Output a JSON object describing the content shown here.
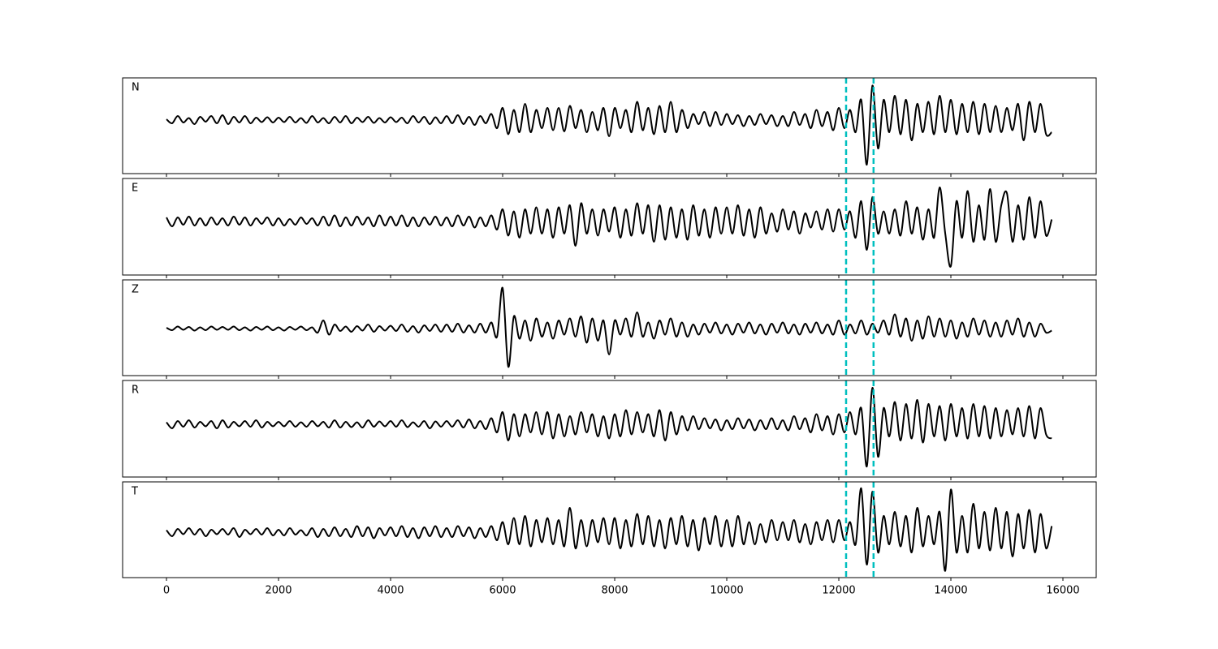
{
  "chart_data": {
    "type": "line",
    "color": "#000000",
    "vline_color": "#00bfbf",
    "vlines": [
      12130,
      12620
    ],
    "xlim": [
      -783,
      16594
    ],
    "xticks": [
      0,
      2000,
      4000,
      6000,
      8000,
      10000,
      12000,
      14000,
      16000
    ],
    "x": [
      0,
      100,
      200,
      300,
      400,
      500,
      600,
      700,
      800,
      900,
      1000,
      1100,
      1200,
      1300,
      1400,
      1500,
      1600,
      1700,
      1800,
      1900,
      2000,
      2100,
      2200,
      2300,
      2400,
      2500,
      2600,
      2700,
      2800,
      2900,
      3000,
      3100,
      3200,
      3300,
      3400,
      3500,
      3600,
      3700,
      3800,
      3900,
      4000,
      4100,
      4200,
      4300,
      4400,
      4500,
      4600,
      4700,
      4800,
      4900,
      5000,
      5100,
      5200,
      5300,
      5400,
      5500,
      5600,
      5700,
      5800,
      5900,
      6000,
      6100,
      6200,
      6300,
      6400,
      6500,
      6600,
      6700,
      6800,
      6900,
      7000,
      7100,
      7200,
      7300,
      7400,
      7500,
      7600,
      7700,
      7800,
      7900,
      8000,
      8100,
      8200,
      8300,
      8400,
      8500,
      8600,
      8700,
      8800,
      8900,
      9000,
      9100,
      9200,
      9300,
      9400,
      9500,
      9600,
      9700,
      9800,
      9900,
      10000,
      10100,
      10200,
      10300,
      10400,
      10500,
      10600,
      10700,
      10800,
      10900,
      11000,
      11100,
      11200,
      11300,
      11400,
      11500,
      11600,
      11700,
      11800,
      11900,
      12000,
      12100,
      12200,
      12300,
      12400,
      12500,
      12600,
      12700,
      12800,
      12900,
      13000,
      13100,
      13200,
      13300,
      13400,
      13500,
      13600,
      13700,
      13800,
      13900,
      14000,
      14100,
      14200,
      14300,
      14400,
      14500,
      14600,
      14700,
      14800,
      14900,
      15000,
      15100,
      15200,
      15300,
      15400,
      15500,
      15600,
      15700,
      15800
    ],
    "panels": [
      {
        "name": "N",
        "ylim": [
          -1.32,
          1.04
        ],
        "values": [
          0.02,
          -0.08,
          0.1,
          -0.06,
          0.05,
          -0.1,
          0.08,
          -0.04,
          0.1,
          -0.08,
          0.12,
          -0.1,
          0.08,
          -0.06,
          0.1,
          -0.08,
          0.06,
          -0.05,
          0.07,
          -0.06,
          0.06,
          -0.05,
          0.08,
          -0.06,
          0.05,
          -0.07,
          0.1,
          -0.06,
          0.05,
          -0.08,
          0.08,
          -0.06,
          0.1,
          -0.08,
          0.06,
          -0.05,
          0.08,
          -0.07,
          0.05,
          -0.06,
          0.07,
          -0.05,
          0.06,
          -0.08,
          0.1,
          -0.06,
          0.08,
          -0.1,
          0.07,
          -0.08,
          0.1,
          -0.08,
          0.12,
          -0.1,
          0.08,
          -0.12,
          0.1,
          -0.08,
          0.15,
          -0.2,
          0.3,
          -0.35,
          0.25,
          -0.3,
          0.4,
          -0.3,
          0.25,
          -0.2,
          0.3,
          -0.25,
          0.3,
          -0.28,
          0.35,
          -0.2,
          0.25,
          -0.3,
          0.2,
          -0.25,
          0.3,
          -0.4,
          0.3,
          -0.2,
          0.25,
          -0.3,
          0.45,
          -0.25,
          0.3,
          -0.35,
          0.35,
          -0.3,
          0.45,
          -0.3,
          0.25,
          -0.2,
          0.15,
          -0.1,
          0.2,
          -0.15,
          0.2,
          -0.12,
          0.15,
          -0.1,
          0.12,
          -0.15,
          0.1,
          -0.12,
          0.15,
          -0.1,
          0.12,
          -0.15,
          0.1,
          -0.15,
          0.2,
          -0.12,
          0.15,
          -0.2,
          0.25,
          -0.15,
          0.2,
          -0.25,
          0.3,
          -0.2,
          0.25,
          -0.3,
          0.5,
          -1.1,
          0.85,
          -0.7,
          0.5,
          -0.3,
          0.6,
          -0.35,
          0.5,
          -0.5,
          0.4,
          -0.3,
          0.45,
          -0.35,
          0.6,
          -0.3,
          0.5,
          -0.35,
          0.4,
          -0.3,
          0.45,
          -0.35,
          0.4,
          -0.3,
          0.35,
          -0.3,
          0.3,
          -0.25,
          0.4,
          -0.5,
          0.45,
          -0.3,
          0.4,
          -0.35,
          -0.3
        ]
      },
      {
        "name": "E",
        "ylim": [
          -1.32,
          1.06
        ],
        "values": [
          0.1,
          -0.12,
          0.1,
          -0.08,
          0.12,
          -0.1,
          0.08,
          -0.1,
          0.1,
          -0.08,
          0.08,
          -0.1,
          0.12,
          -0.08,
          0.1,
          -0.1,
          0.08,
          -0.06,
          0.1,
          -0.1,
          0.08,
          -0.1,
          0.06,
          -0.08,
          0.1,
          -0.06,
          0.08,
          -0.1,
          0.12,
          -0.1,
          0.15,
          -0.12,
          0.1,
          -0.1,
          0.12,
          -0.08,
          0.1,
          -0.12,
          0.15,
          -0.1,
          0.12,
          -0.1,
          0.15,
          -0.12,
          0.1,
          -0.12,
          0.1,
          -0.08,
          0.12,
          -0.1,
          0.1,
          -0.12,
          0.15,
          -0.1,
          0.12,
          -0.15,
          0.1,
          -0.12,
          0.15,
          -0.2,
          0.3,
          -0.35,
          0.25,
          -0.4,
          0.3,
          -0.3,
          0.35,
          -0.3,
          0.3,
          -0.4,
          0.35,
          -0.3,
          0.4,
          -0.6,
          0.45,
          -0.3,
          0.3,
          -0.35,
          0.3,
          -0.25,
          0.35,
          -0.4,
          0.3,
          -0.35,
          0.45,
          -0.3,
          0.4,
          -0.5,
          0.4,
          -0.45,
          0.35,
          -0.4,
          0.3,
          -0.45,
          0.4,
          -0.35,
          0.3,
          -0.4,
          0.35,
          -0.3,
          0.35,
          -0.3,
          0.4,
          -0.35,
          0.3,
          -0.4,
          0.35,
          -0.3,
          0.2,
          -0.25,
          0.3,
          -0.2,
          0.25,
          -0.3,
          0.2,
          -0.15,
          0.25,
          -0.2,
          0.3,
          -0.25,
          0.3,
          -0.2,
          0.25,
          -0.4,
          0.5,
          -0.7,
          0.6,
          -0.3,
          0.25,
          -0.3,
          0.3,
          -0.35,
          0.5,
          -0.3,
          0.35,
          -0.45,
          0.3,
          -0.4,
          0.84,
          -0.3,
          -1.1,
          0.5,
          -0.4,
          0.75,
          -0.5,
          0.4,
          -0.45,
          0.8,
          -0.5,
          0.4,
          0.7,
          -0.5,
          0.4,
          -0.45,
          0.6,
          -0.4,
          0.5,
          -0.35,
          0.05
        ]
      },
      {
        "name": "Z",
        "ylim": [
          -1.16,
          1.2
        ],
        "values": [
          0.02,
          -0.04,
          0.05,
          -0.03,
          0.04,
          -0.05,
          0.03,
          -0.04,
          0.05,
          -0.03,
          0.04,
          -0.03,
          0.05,
          -0.04,
          0.03,
          -0.05,
          0.04,
          -0.03,
          0.05,
          -0.04,
          0.03,
          -0.05,
          0.04,
          -0.03,
          0.05,
          -0.04,
          0.03,
          -0.1,
          0.2,
          -0.15,
          0.1,
          -0.06,
          0.05,
          -0.08,
          0.06,
          -0.05,
          0.1,
          -0.08,
          0.06,
          -0.05,
          0.07,
          -0.06,
          0.1,
          -0.08,
          0.06,
          -0.1,
          0.08,
          -0.06,
          0.1,
          -0.08,
          0.1,
          -0.08,
          0.12,
          -0.1,
          0.08,
          -0.1,
          0.12,
          -0.1,
          0.15,
          -0.2,
          1.0,
          -0.94,
          0.3,
          -0.25,
          0.2,
          -0.3,
          0.25,
          -0.2,
          0.15,
          -0.25,
          0.2,
          -0.15,
          0.25,
          -0.2,
          0.3,
          -0.35,
          0.25,
          -0.3,
          0.2,
          -0.64,
          0.2,
          -0.15,
          0.25,
          -0.2,
          0.4,
          -0.2,
          0.15,
          -0.25,
          0.2,
          -0.15,
          0.25,
          -0.2,
          0.15,
          -0.2,
          0.1,
          -0.15,
          0.12,
          -0.1,
          0.15,
          -0.12,
          0.1,
          -0.15,
          0.12,
          -0.1,
          0.15,
          -0.12,
          0.1,
          -0.15,
          0.12,
          -0.1,
          0.15,
          -0.12,
          0.1,
          -0.15,
          0.12,
          -0.1,
          0.15,
          -0.12,
          0.1,
          -0.15,
          0.2,
          -0.15,
          0.1,
          -0.12,
          0.2,
          -0.15,
          0.12,
          -0.1,
          0.2,
          -0.15,
          0.35,
          -0.2,
          0.25,
          -0.3,
          0.2,
          -0.25,
          0.3,
          -0.2,
          0.25,
          -0.2,
          0.2,
          -0.25,
          0.15,
          -0.2,
          0.25,
          -0.15,
          0.2,
          -0.2,
          0.15,
          -0.2,
          0.2,
          -0.15,
          0.25,
          -0.2,
          0.15,
          -0.2,
          0.12,
          -0.1,
          -0.05
        ]
      },
      {
        "name": "R",
        "ylim": [
          -1.3,
          1.08
        ],
        "values": [
          0.05,
          -0.1,
          0.08,
          -0.06,
          0.1,
          -0.08,
          0.06,
          -0.05,
          0.08,
          -0.1,
          0.1,
          -0.08,
          0.06,
          -0.05,
          0.08,
          -0.06,
          0.1,
          -0.08,
          0.06,
          -0.05,
          0.06,
          -0.05,
          0.08,
          -0.06,
          0.05,
          -0.06,
          0.08,
          -0.05,
          0.06,
          -0.08,
          0.1,
          -0.08,
          0.06,
          -0.07,
          0.05,
          -0.08,
          0.1,
          -0.06,
          0.07,
          -0.05,
          0.08,
          -0.06,
          0.1,
          -0.07,
          0.05,
          -0.06,
          0.08,
          -0.1,
          0.07,
          -0.06,
          0.08,
          -0.06,
          0.1,
          -0.08,
          0.12,
          -0.1,
          0.08,
          -0.12,
          0.15,
          -0.2,
          0.3,
          -0.4,
          0.25,
          -0.3,
          0.25,
          -0.2,
          0.3,
          -0.25,
          0.3,
          -0.35,
          0.25,
          -0.3,
          0.2,
          -0.25,
          0.3,
          -0.2,
          0.25,
          -0.3,
          0.2,
          -0.35,
          0.25,
          -0.3,
          0.35,
          -0.25,
          0.3,
          -0.2,
          0.25,
          -0.3,
          0.35,
          -0.4,
          0.3,
          -0.25,
          0.2,
          -0.15,
          0.2,
          -0.12,
          0.15,
          -0.1,
          0.12,
          -0.15,
          0.1,
          -0.12,
          0.15,
          -0.1,
          0.12,
          -0.15,
          0.1,
          -0.12,
          0.15,
          -0.12,
          0.1,
          -0.15,
          0.2,
          -0.12,
          0.15,
          -0.2,
          0.25,
          -0.15,
          0.2,
          -0.25,
          0.25,
          -0.2,
          0.3,
          -0.25,
          0.4,
          -1.04,
          0.9,
          -0.8,
          0.4,
          -0.3,
          0.55,
          -0.4,
          0.5,
          -0.35,
          0.6,
          -0.45,
          0.5,
          -0.3,
          0.45,
          -0.4,
          0.5,
          -0.3,
          0.4,
          -0.35,
          0.5,
          -0.3,
          0.45,
          -0.35,
          0.4,
          -0.3,
          0.35,
          -0.25,
          0.4,
          -0.3,
          0.45,
          -0.35,
          0.4,
          -0.25,
          -0.35
        ]
      },
      {
        "name": "T",
        "ylim": [
          -1.12,
          1.24
        ],
        "values": [
          0.05,
          -0.1,
          0.08,
          -0.05,
          0.1,
          -0.06,
          0.08,
          -0.1,
          0.06,
          -0.05,
          0.08,
          -0.06,
          0.1,
          -0.12,
          0.06,
          -0.05,
          0.08,
          -0.06,
          0.1,
          -0.08,
          0.06,
          -0.08,
          0.1,
          -0.06,
          0.05,
          -0.08,
          0.1,
          -0.12,
          0.08,
          -0.1,
          0.12,
          -0.1,
          0.08,
          -0.12,
          0.15,
          -0.1,
          0.12,
          -0.15,
          0.1,
          -0.08,
          0.12,
          -0.1,
          0.15,
          -0.12,
          0.1,
          -0.15,
          0.12,
          -0.1,
          0.15,
          -0.12,
          0.1,
          -0.12,
          0.15,
          -0.1,
          0.12,
          -0.15,
          0.1,
          -0.12,
          0.15,
          -0.2,
          0.25,
          -0.3,
          0.35,
          -0.3,
          0.4,
          -0.35,
          0.3,
          -0.25,
          0.35,
          -0.3,
          0.3,
          -0.35,
          0.6,
          -0.4,
          0.3,
          -0.35,
          0.3,
          -0.25,
          0.35,
          -0.3,
          0.35,
          -0.4,
          0.3,
          -0.35,
          0.45,
          -0.3,
          0.4,
          -0.35,
          0.3,
          -0.4,
          0.35,
          -0.3,
          0.4,
          -0.35,
          0.3,
          -0.45,
          0.35,
          -0.3,
          0.4,
          -0.35,
          0.3,
          -0.35,
          0.4,
          -0.3,
          0.25,
          -0.3,
          0.2,
          -0.25,
          0.3,
          -0.2,
          0.25,
          -0.2,
          0.3,
          -0.25,
          0.2,
          -0.3,
          0.25,
          -0.2,
          0.3,
          -0.25,
          0.3,
          -0.2,
          0.25,
          -0.3,
          1.08,
          -0.8,
          1.0,
          -0.5,
          0.4,
          -0.3,
          0.5,
          -0.35,
          0.4,
          -0.5,
          0.6,
          -0.35,
          0.4,
          -0.3,
          0.5,
          -0.95,
          1.05,
          -0.5,
          0.4,
          -0.5,
          0.7,
          -0.4,
          0.5,
          -0.45,
          0.6,
          -0.4,
          0.5,
          -0.6,
          0.45,
          -0.4,
          0.55,
          -0.5,
          0.45,
          -0.4,
          0.15
        ]
      }
    ]
  }
}
